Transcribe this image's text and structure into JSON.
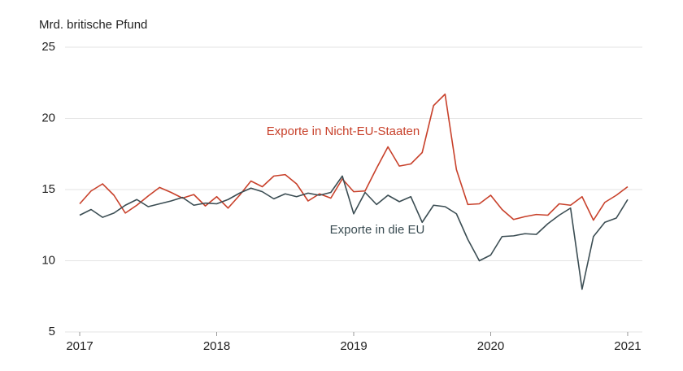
{
  "chart_data": {
    "type": "line",
    "ylabel": "Mrd. britische Pfund",
    "x": [
      2017,
      2017.083,
      2017.167,
      2017.25,
      2017.333,
      2017.417,
      2017.5,
      2017.583,
      2017.667,
      2017.75,
      2017.833,
      2017.917,
      2018,
      2018.083,
      2018.167,
      2018.25,
      2018.333,
      2018.417,
      2018.5,
      2018.583,
      2018.667,
      2018.75,
      2018.833,
      2018.917,
      2019,
      2019.083,
      2019.167,
      2019.25,
      2019.333,
      2019.417,
      2019.5,
      2019.583,
      2019.667,
      2019.75,
      2019.833,
      2019.917,
      2020,
      2020.083,
      2020.167,
      2020.25,
      2020.333,
      2020.417,
      2020.5,
      2020.583,
      2020.667,
      2020.75,
      2020.833,
      2020.917,
      2021
    ],
    "series": [
      {
        "name": "Exporte in Nicht-EU-Staaten",
        "color": "#c8412b",
        "values": [
          14.0,
          14.9,
          15.4,
          14.6,
          13.35,
          13.9,
          14.55,
          15.15,
          14.8,
          14.4,
          14.65,
          13.85,
          14.5,
          13.7,
          14.6,
          15.6,
          15.2,
          15.95,
          16.05,
          15.4,
          14.2,
          14.7,
          14.4,
          15.75,
          14.85,
          14.9,
          16.5,
          18.0,
          16.65,
          16.8,
          17.6,
          20.9,
          21.7,
          16.4,
          13.95,
          14.0,
          14.6,
          13.6,
          12.9,
          13.1,
          13.25,
          13.2,
          14.0,
          13.9,
          14.5,
          12.85,
          14.1,
          14.6,
          15.2
        ]
      },
      {
        "name": "Exporte in die EU",
        "color": "#3b4d53",
        "values": [
          13.2,
          13.6,
          13.05,
          13.35,
          13.9,
          14.3,
          13.8,
          14.0,
          14.2,
          14.45,
          13.9,
          14.05,
          14.0,
          14.3,
          14.75,
          15.1,
          14.85,
          14.35,
          14.7,
          14.5,
          14.75,
          14.6,
          14.8,
          15.95,
          13.3,
          14.8,
          13.95,
          14.6,
          14.15,
          14.5,
          12.7,
          13.9,
          13.8,
          13.3,
          11.5,
          10.0,
          10.4,
          11.7,
          11.75,
          11.9,
          11.85,
          12.6,
          13.2,
          13.7,
          8.0,
          11.7,
          12.7,
          13.0,
          14.3
        ]
      }
    ],
    "xlim": [
      2016.893,
      2021.107
    ],
    "xticks": [
      2017,
      2018,
      2019,
      2020,
      2021
    ],
    "ylim": [
      5,
      25
    ],
    "yticks": [
      5,
      10,
      15,
      20,
      25
    ],
    "grid": true
  }
}
